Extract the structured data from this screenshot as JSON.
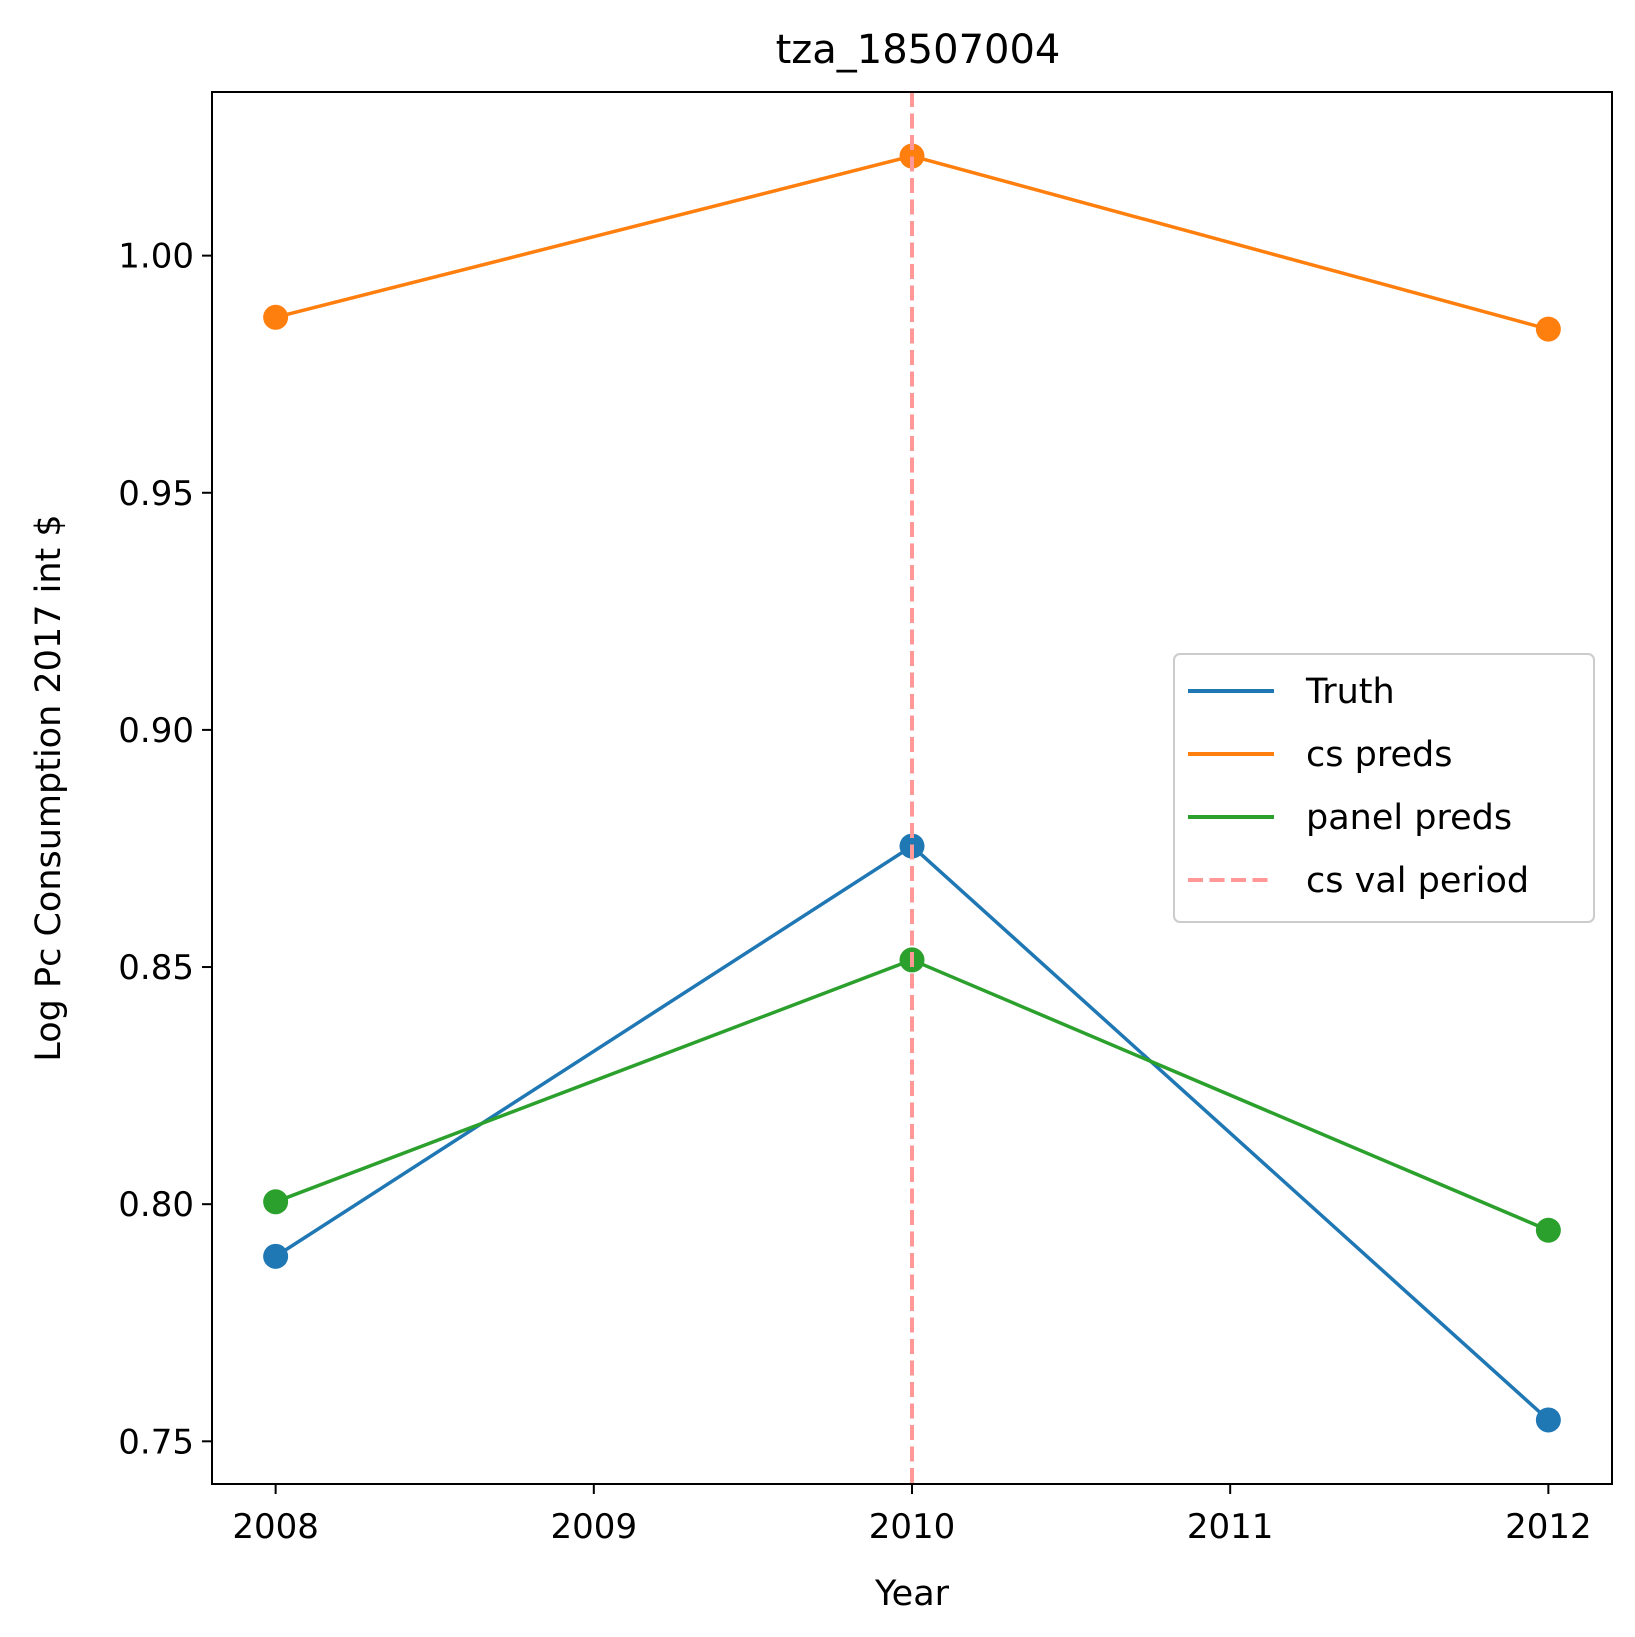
{
  "chart_data": {
    "type": "line",
    "title": "tza_18507004",
    "xlabel": "Year",
    "ylabel": "Log Pc Consumption 2017 int $",
    "x": [
      2008,
      2010,
      2012
    ],
    "xticks": [
      2008,
      2009,
      2010,
      2011,
      2012
    ],
    "xtick_labels": [
      "2008",
      "2009",
      "2010",
      "2011",
      "2012"
    ],
    "xlim": [
      2007.8,
      2012.2
    ],
    "ylim": [
      0.741,
      1.0345
    ],
    "yticks": [
      0.75,
      0.8,
      0.85,
      0.9,
      0.95,
      1.0
    ],
    "ytick_labels": [
      "0.75",
      "0.80",
      "0.85",
      "0.90",
      "0.95",
      "1.00"
    ],
    "grid": false,
    "legend_position": "center-right",
    "series": [
      {
        "name": "Truth",
        "values": [
          0.789,
          0.8755,
          0.7545
        ],
        "color": "#1f77b4",
        "style": "solid",
        "markers": true
      },
      {
        "name": "cs preds",
        "values": [
          0.987,
          1.021,
          0.9845
        ],
        "color": "#ff7f0e",
        "style": "solid",
        "markers": true
      },
      {
        "name": "panel preds",
        "values": [
          0.8005,
          0.8515,
          0.7945
        ],
        "color": "#2ca02c",
        "style": "solid",
        "markers": true
      }
    ],
    "vlines": [
      {
        "name": "cs val period",
        "x": 2010,
        "color": "#ff9896",
        "style": "dashed"
      }
    ]
  }
}
